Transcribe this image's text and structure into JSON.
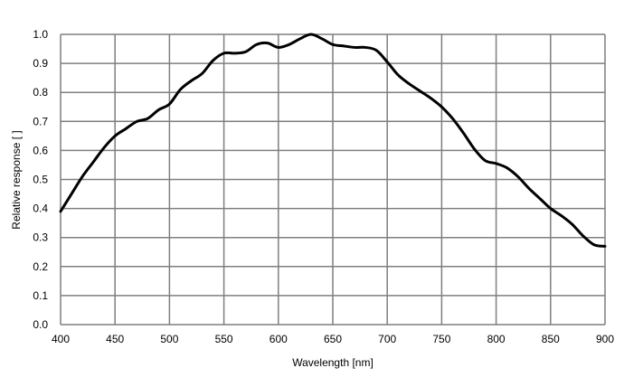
{
  "chart_data": {
    "type": "line",
    "title": "",
    "xlabel": "Wavelength [nm]",
    "ylabel": "Relative response [ ]",
    "xlim": [
      400,
      900
    ],
    "ylim": [
      0,
      1.0
    ],
    "x_ticks": [
      400,
      450,
      500,
      550,
      600,
      650,
      700,
      750,
      800,
      850,
      900
    ],
    "y_ticks": [
      0,
      0.1,
      0.2,
      0.3,
      0.4,
      0.5,
      0.6,
      0.7,
      0.8,
      0.9,
      1.0
    ],
    "x_tick_labels": [
      "400",
      "450",
      "500",
      "550",
      "600",
      "650",
      "700",
      "750",
      "800",
      "850",
      "900"
    ],
    "y_tick_labels": [
      "0.0",
      "0.1",
      "0.2",
      "0.3",
      "0.4",
      "0.5",
      "0.6",
      "0.7",
      "0.8",
      "0.9",
      "1.0"
    ],
    "grid": true,
    "legend": "none",
    "colors": {
      "line": "#000000",
      "grid": "#7f7f7f"
    },
    "series": [
      {
        "x": [
          400,
          410,
          420,
          430,
          440,
          450,
          460,
          470,
          480,
          490,
          500,
          510,
          520,
          530,
          540,
          550,
          560,
          570,
          580,
          590,
          600,
          610,
          620,
          630,
          640,
          650,
          660,
          670,
          680,
          690,
          700,
          710,
          720,
          730,
          740,
          750,
          760,
          770,
          780,
          790,
          800,
          810,
          820,
          830,
          840,
          850,
          860,
          870,
          880,
          890,
          900
        ],
        "y": [
          0.39,
          0.45,
          0.51,
          0.56,
          0.61,
          0.65,
          0.675,
          0.7,
          0.71,
          0.74,
          0.76,
          0.81,
          0.84,
          0.865,
          0.91,
          0.935,
          0.935,
          0.94,
          0.965,
          0.97,
          0.955,
          0.965,
          0.985,
          1.0,
          0.985,
          0.965,
          0.96,
          0.955,
          0.955,
          0.945,
          0.905,
          0.86,
          0.83,
          0.805,
          0.78,
          0.75,
          0.71,
          0.66,
          0.605,
          0.565,
          0.555,
          0.54,
          0.51,
          0.47,
          0.435,
          0.4,
          0.375,
          0.345,
          0.305,
          0.275,
          0.27
        ]
      }
    ]
  }
}
